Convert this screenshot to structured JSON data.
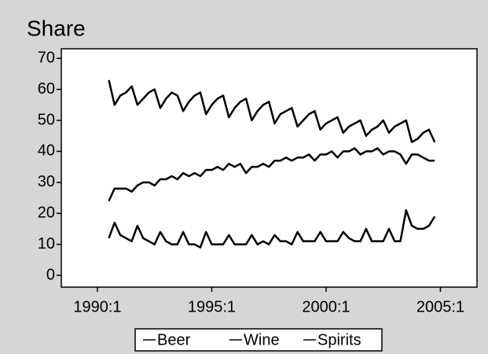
{
  "chart_data": {
    "type": "line",
    "title": "Share",
    "x": [
      1990.5,
      1990.75,
      1991,
      1991.25,
      1991.5,
      1991.75,
      1992,
      1992.25,
      1992.5,
      1992.75,
      1993,
      1993.25,
      1993.5,
      1993.75,
      1994,
      1994.25,
      1994.5,
      1994.75,
      1995,
      1995.25,
      1995.5,
      1995.75,
      1996,
      1996.25,
      1996.5,
      1996.75,
      1997,
      1997.25,
      1997.5,
      1997.75,
      1998,
      1998.25,
      1998.5,
      1998.75,
      1999,
      1999.25,
      1999.5,
      1999.75,
      2000,
      2000.25,
      2000.5,
      2000.75,
      2001,
      2001.25,
      2001.5,
      2001.75,
      2002,
      2002.25,
      2002.5,
      2002.75,
      2003,
      2003.25,
      2003.5,
      2003.75,
      2004,
      2004.25,
      2004.5,
      2004.75
    ],
    "series": [
      {
        "name": "Beer",
        "color": "#000000",
        "values": [
          63,
          55,
          58,
          59,
          61,
          55,
          57,
          59,
          60,
          54,
          57,
          59,
          58,
          53,
          56,
          58,
          59,
          52,
          55,
          57,
          58,
          51,
          54,
          56,
          57,
          50,
          53,
          55,
          56,
          49,
          52,
          53,
          54,
          48,
          50,
          52,
          53,
          47,
          49,
          50,
          51,
          46,
          48,
          49,
          50,
          45,
          47,
          48,
          50,
          46,
          48,
          49,
          50,
          43,
          44,
          46,
          47,
          43
        ]
      },
      {
        "name": "Wine",
        "color": "#000000",
        "values": [
          24,
          28,
          28,
          28,
          27,
          29,
          30,
          30,
          29,
          31,
          31,
          32,
          31,
          33,
          32,
          33,
          32,
          34,
          34,
          35,
          34,
          36,
          35,
          36,
          33,
          35,
          35,
          36,
          35,
          37,
          37,
          38,
          37,
          38,
          38,
          39,
          37,
          39,
          39,
          40,
          38,
          40,
          40,
          41,
          39,
          40,
          40,
          41,
          39,
          40,
          40,
          39,
          36,
          39,
          39,
          38,
          37,
          37
        ]
      },
      {
        "name": "Spirits",
        "color": "#000000",
        "values": [
          12,
          17,
          13,
          12,
          11,
          16,
          12,
          11,
          10,
          14,
          11,
          10,
          10,
          14,
          10,
          10,
          9,
          14,
          10,
          10,
          10,
          13,
          10,
          10,
          10,
          13,
          10,
          11,
          10,
          13,
          11,
          11,
          10,
          14,
          11,
          11,
          11,
          14,
          11,
          11,
          11,
          14,
          12,
          11,
          11,
          15,
          11,
          11,
          11,
          15,
          11,
          11,
          21,
          16,
          15,
          15,
          16,
          19
        ]
      }
    ],
    "xlim": [
      1988.42,
      2006.6
    ],
    "xticks": [
      {
        "value": 1990,
        "label": "1990:1"
      },
      {
        "value": 1995,
        "label": "1995:1"
      },
      {
        "value": 2000,
        "label": "2000:1"
      },
      {
        "value": 2005,
        "label": "2005:1"
      }
    ],
    "ylim": [
      -3.8,
      73.1
    ],
    "yticks": [
      0,
      10,
      20,
      30,
      40,
      50,
      60,
      70
    ]
  }
}
